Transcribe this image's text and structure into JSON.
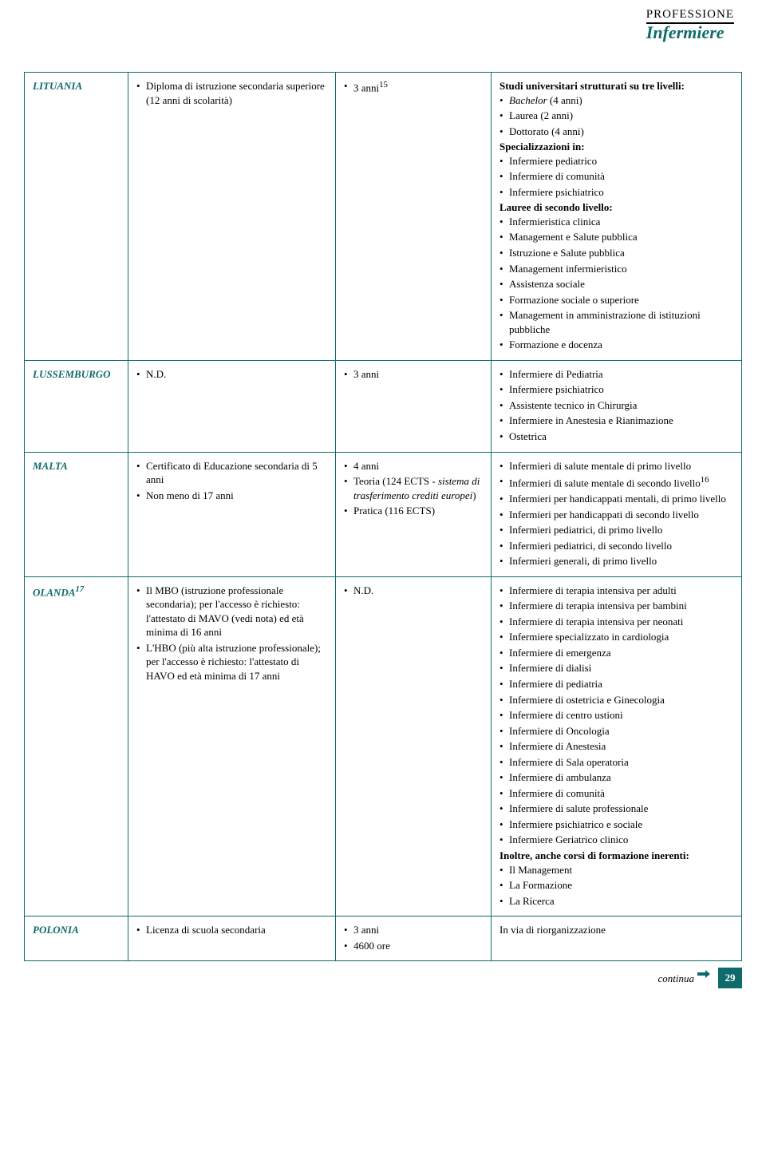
{
  "logo": {
    "line1": "PROFESSIONE",
    "line2": "Infermiere"
  },
  "rows": {
    "lituania": {
      "country": "LITUANIA",
      "col2_items": [
        {
          "text": "Diploma di istruzione secondaria superiore (12 anni di scolarità)"
        }
      ],
      "col3_items": [
        {
          "html": "3 anni<sup>15</sup>"
        }
      ],
      "col4_blocks": [
        {
          "type": "text",
          "bold": true,
          "text": "Studi universitari strutturati su tre livelli:"
        },
        {
          "type": "list",
          "items": [
            {
              "html": "<span class='i'>Bachelor</span> (4 anni)"
            },
            {
              "text": "Laurea (2 anni)"
            },
            {
              "text": "Dottorato (4 anni)"
            }
          ]
        },
        {
          "type": "text",
          "bold": true,
          "text": "Specializzazioni in:"
        },
        {
          "type": "list",
          "items": [
            {
              "text": "Infermiere pediatrico"
            },
            {
              "text": "Infermiere di comunità"
            },
            {
              "text": "Infermiere psichiatrico"
            }
          ]
        },
        {
          "type": "text",
          "bold": true,
          "text": "Lauree di secondo livello:"
        },
        {
          "type": "list",
          "items": [
            {
              "text": "Infermieristica clinica"
            },
            {
              "text": "Management e Salute pubblica"
            },
            {
              "text": "Istruzione e Salute pubblica"
            },
            {
              "text": "Management infermieristico"
            },
            {
              "text": "Assistenza sociale"
            },
            {
              "text": "Formazione sociale o superiore"
            },
            {
              "text": "Management in amministrazione di istituzioni pubbliche"
            },
            {
              "text": "Formazione e docenza"
            }
          ]
        }
      ]
    },
    "lussemburgo": {
      "country": "LUSSEMBURGO",
      "col2_items": [
        {
          "text": "N.D."
        }
      ],
      "col3_items": [
        {
          "text": "3 anni"
        }
      ],
      "col4_blocks": [
        {
          "type": "list",
          "items": [
            {
              "text": "Infermiere di Pediatria"
            },
            {
              "text": "Infermiere psichiatrico"
            },
            {
              "text": "Assistente tecnico in Chirurgia"
            },
            {
              "text": "Infermiere in Anestesia e Rianimazione"
            },
            {
              "text": "Ostetrica"
            }
          ]
        }
      ]
    },
    "malta": {
      "country": "MALTA",
      "col2_items": [
        {
          "text": "Certificato di Educazione secondaria di 5 anni"
        },
        {
          "text": "Non meno di 17 anni"
        }
      ],
      "col3_items": [
        {
          "text": "4 anni"
        },
        {
          "html": "Teoria (124 ECTS - <span class='i'>sistema di trasferimento crediti europei</span>)"
        },
        {
          "text": "Pratica (116 ECTS)"
        }
      ],
      "col4_blocks": [
        {
          "type": "list",
          "items": [
            {
              "text": "Infermieri di salute mentale di primo livello"
            },
            {
              "html": "Infermieri di salute mentale di secondo livello<sup>16</sup>"
            },
            {
              "text": "Infermieri per handicappati mentali, di primo livello"
            },
            {
              "text": "Infermieri per handicappati di secondo livello"
            },
            {
              "text": "Infermieri pediatrici, di primo livello"
            },
            {
              "text": "Infermieri pediatrici, di secondo livello"
            },
            {
              "text": "Infermieri generali, di primo livello"
            }
          ]
        }
      ]
    },
    "olanda": {
      "country_html": "OLANDA<sup>17</sup>",
      "col2_items": [
        {
          "text": "Il MBO (istruzione professionale secondaria); per l'accesso è richiesto: l'attestato di MAVO (vedi nota) ed età minima di 16 anni"
        },
        {
          "text": "L'HBO (più alta istruzione professionale); per l'accesso è richiesto: l'attestato di HAVO ed età minima di 17 anni"
        }
      ],
      "col3_items": [
        {
          "text": "N.D."
        }
      ],
      "col4_blocks": [
        {
          "type": "list",
          "items": [
            {
              "text": "Infermiere di terapia intensiva per adulti"
            },
            {
              "text": "Infermiere di terapia intensiva per bambini"
            },
            {
              "text": "Infermiere di terapia intensiva per neonati"
            },
            {
              "text": "Infermiere specializzato in cardiologia"
            },
            {
              "text": "Infermiere di emergenza"
            },
            {
              "text": "Infermiere di dialisi"
            },
            {
              "text": "Infermiere di pediatria"
            },
            {
              "text": "Infermiere di ostetricia e Ginecologia"
            },
            {
              "text": "Infermiere di centro ustioni"
            },
            {
              "text": "Infermiere di Oncologia"
            },
            {
              "text": "Infermiere di Anestesia"
            },
            {
              "text": "Infermiere di Sala operatoria"
            },
            {
              "text": "Infermiere di ambulanza"
            },
            {
              "text": "Infermiere di comunità"
            },
            {
              "text": "Infermiere di salute professionale"
            },
            {
              "text": "Infermiere psichiatrico e sociale"
            },
            {
              "text": "Infermiere Geriatrico clinico"
            }
          ]
        },
        {
          "type": "text",
          "bold": true,
          "text": "Inoltre, anche corsi di formazione inerenti:"
        },
        {
          "type": "list",
          "items": [
            {
              "text": "Il Management"
            },
            {
              "text": "La Formazione"
            },
            {
              "text": "La Ricerca"
            }
          ]
        }
      ]
    },
    "polonia": {
      "country": "POLONIA",
      "col2_items": [
        {
          "text": "Licenza di scuola secondaria"
        }
      ],
      "col3_items": [
        {
          "text": "3 anni"
        },
        {
          "text": "4600 ore"
        }
      ],
      "col4_plain": "In via di riorganizzazione"
    }
  },
  "footer": {
    "continua": "continua",
    "page": "29"
  },
  "colors": {
    "accent": "#0f6b6b"
  }
}
